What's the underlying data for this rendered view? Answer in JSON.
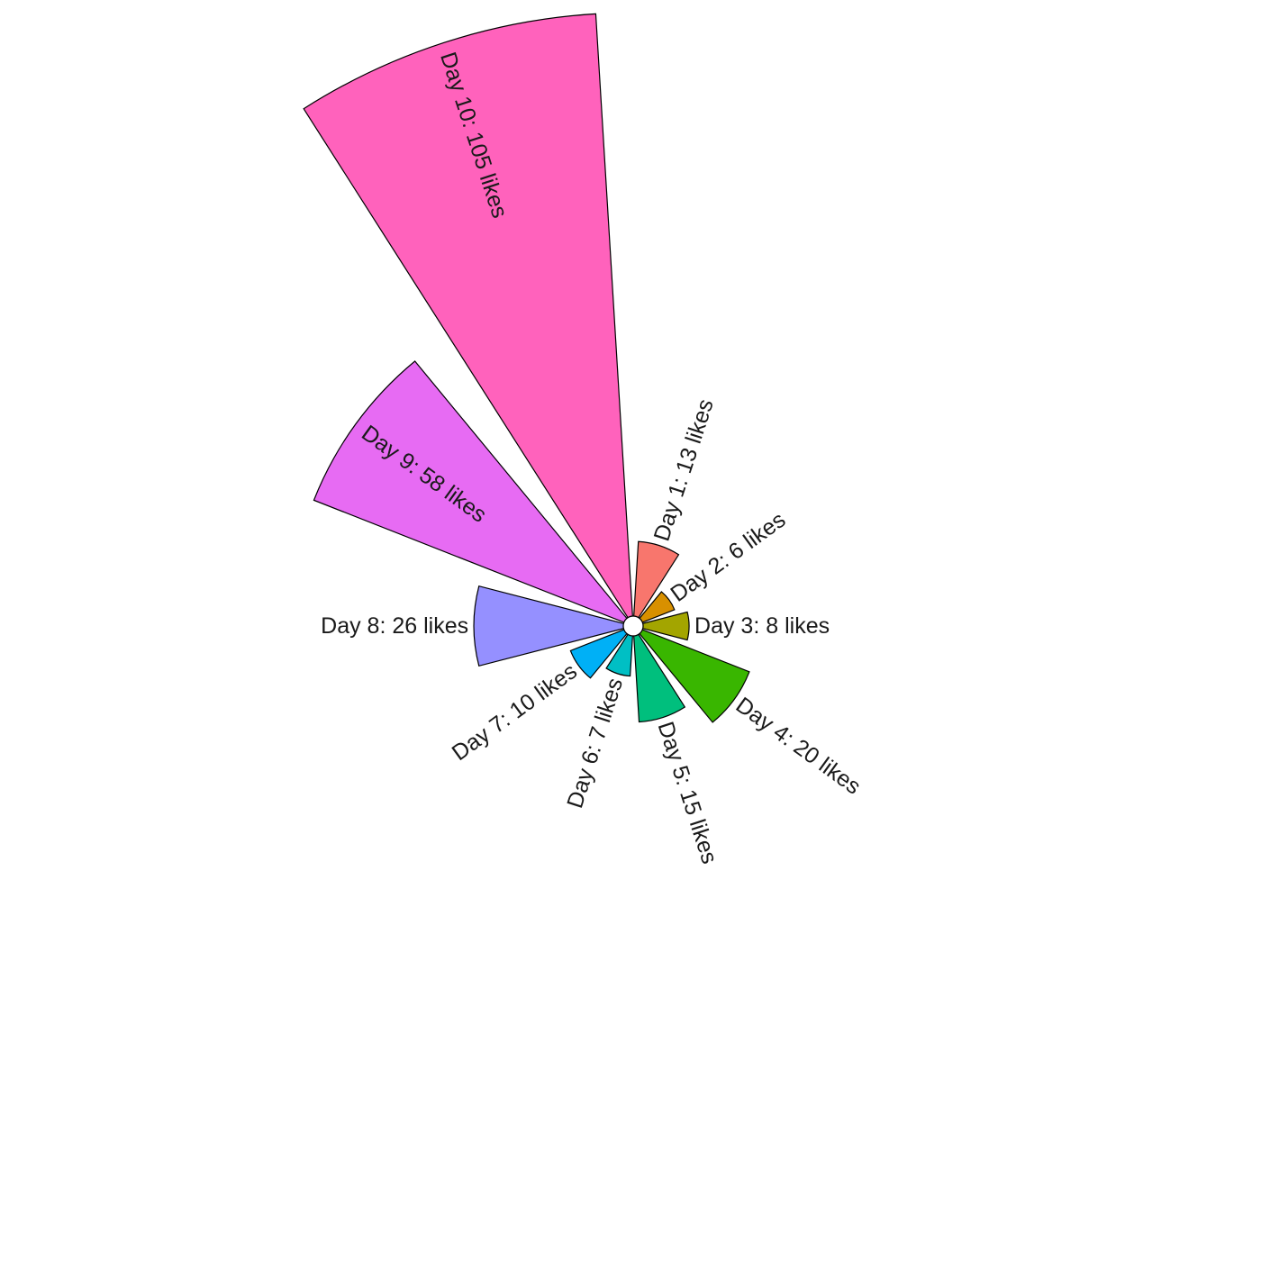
{
  "chart_data": {
    "type": "bar",
    "coord": "polar",
    "categories": [
      "Day 1",
      "Day 2",
      "Day 3",
      "Day 4",
      "Day 5",
      "Day 6",
      "Day 7",
      "Day 8",
      "Day 9",
      "Day 10"
    ],
    "values": [
      13,
      6,
      8,
      20,
      15,
      7,
      10,
      26,
      58,
      105
    ],
    "labels": [
      "Day 1: 13 likes",
      "Day 2: 6 likes",
      "Day 3: 8 likes",
      "Day 4: 20 likes",
      "Day 5: 15 likes",
      "Day 6: 7 likes",
      "Day 7: 10 likes",
      "Day 8: 26 likes",
      "Day 9: 58 likes",
      "Day 10: 105 likes"
    ],
    "colors": [
      "#F8766D",
      "#D89000",
      "#A3A500",
      "#39B600",
      "#00BF7D",
      "#00BFC4",
      "#00B0F6",
      "#9590FF",
      "#E76BF3",
      "#FF62BC"
    ],
    "center_hole_color": "#ffffff",
    "title": "",
    "xlabel": "",
    "ylabel": "",
    "grid": false,
    "legend": "none"
  }
}
